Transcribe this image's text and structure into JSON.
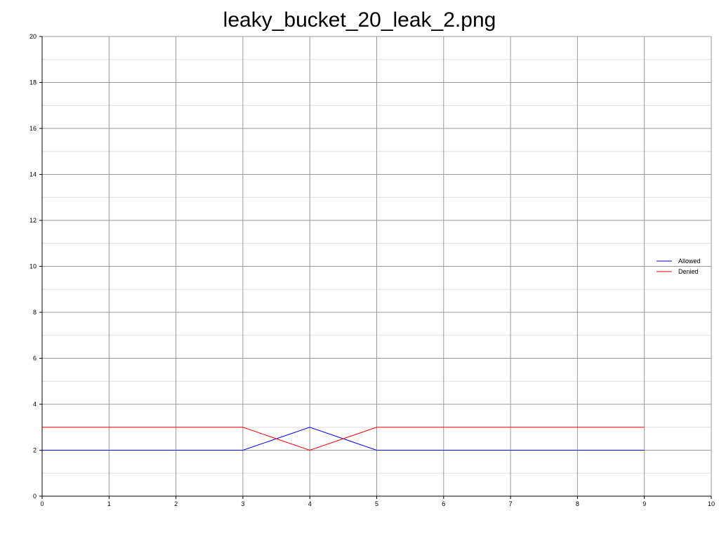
{
  "chart_data": {
    "type": "line",
    "title": "leaky_bucket_20_leak_2.png",
    "xlabel": "",
    "ylabel": "",
    "xlim": [
      0,
      10
    ],
    "ylim": [
      0,
      20
    ],
    "x_ticks": [
      0,
      1,
      2,
      3,
      4,
      5,
      6,
      7,
      8,
      9,
      10
    ],
    "y_ticks": [
      0,
      2,
      4,
      6,
      8,
      10,
      12,
      14,
      16,
      18,
      20
    ],
    "grid": true,
    "legend_position": "right",
    "x": [
      0,
      1,
      2,
      3,
      4,
      5,
      6,
      7,
      8,
      9
    ],
    "series": [
      {
        "name": "Allowed",
        "color": "#0000ff",
        "values": [
          2,
          2,
          2,
          2,
          3,
          2,
          2,
          2,
          2,
          2
        ]
      },
      {
        "name": "Denied",
        "color": "#ff0000",
        "values": [
          3,
          3,
          3,
          3,
          2,
          3,
          3,
          3,
          3,
          3
        ]
      }
    ]
  }
}
